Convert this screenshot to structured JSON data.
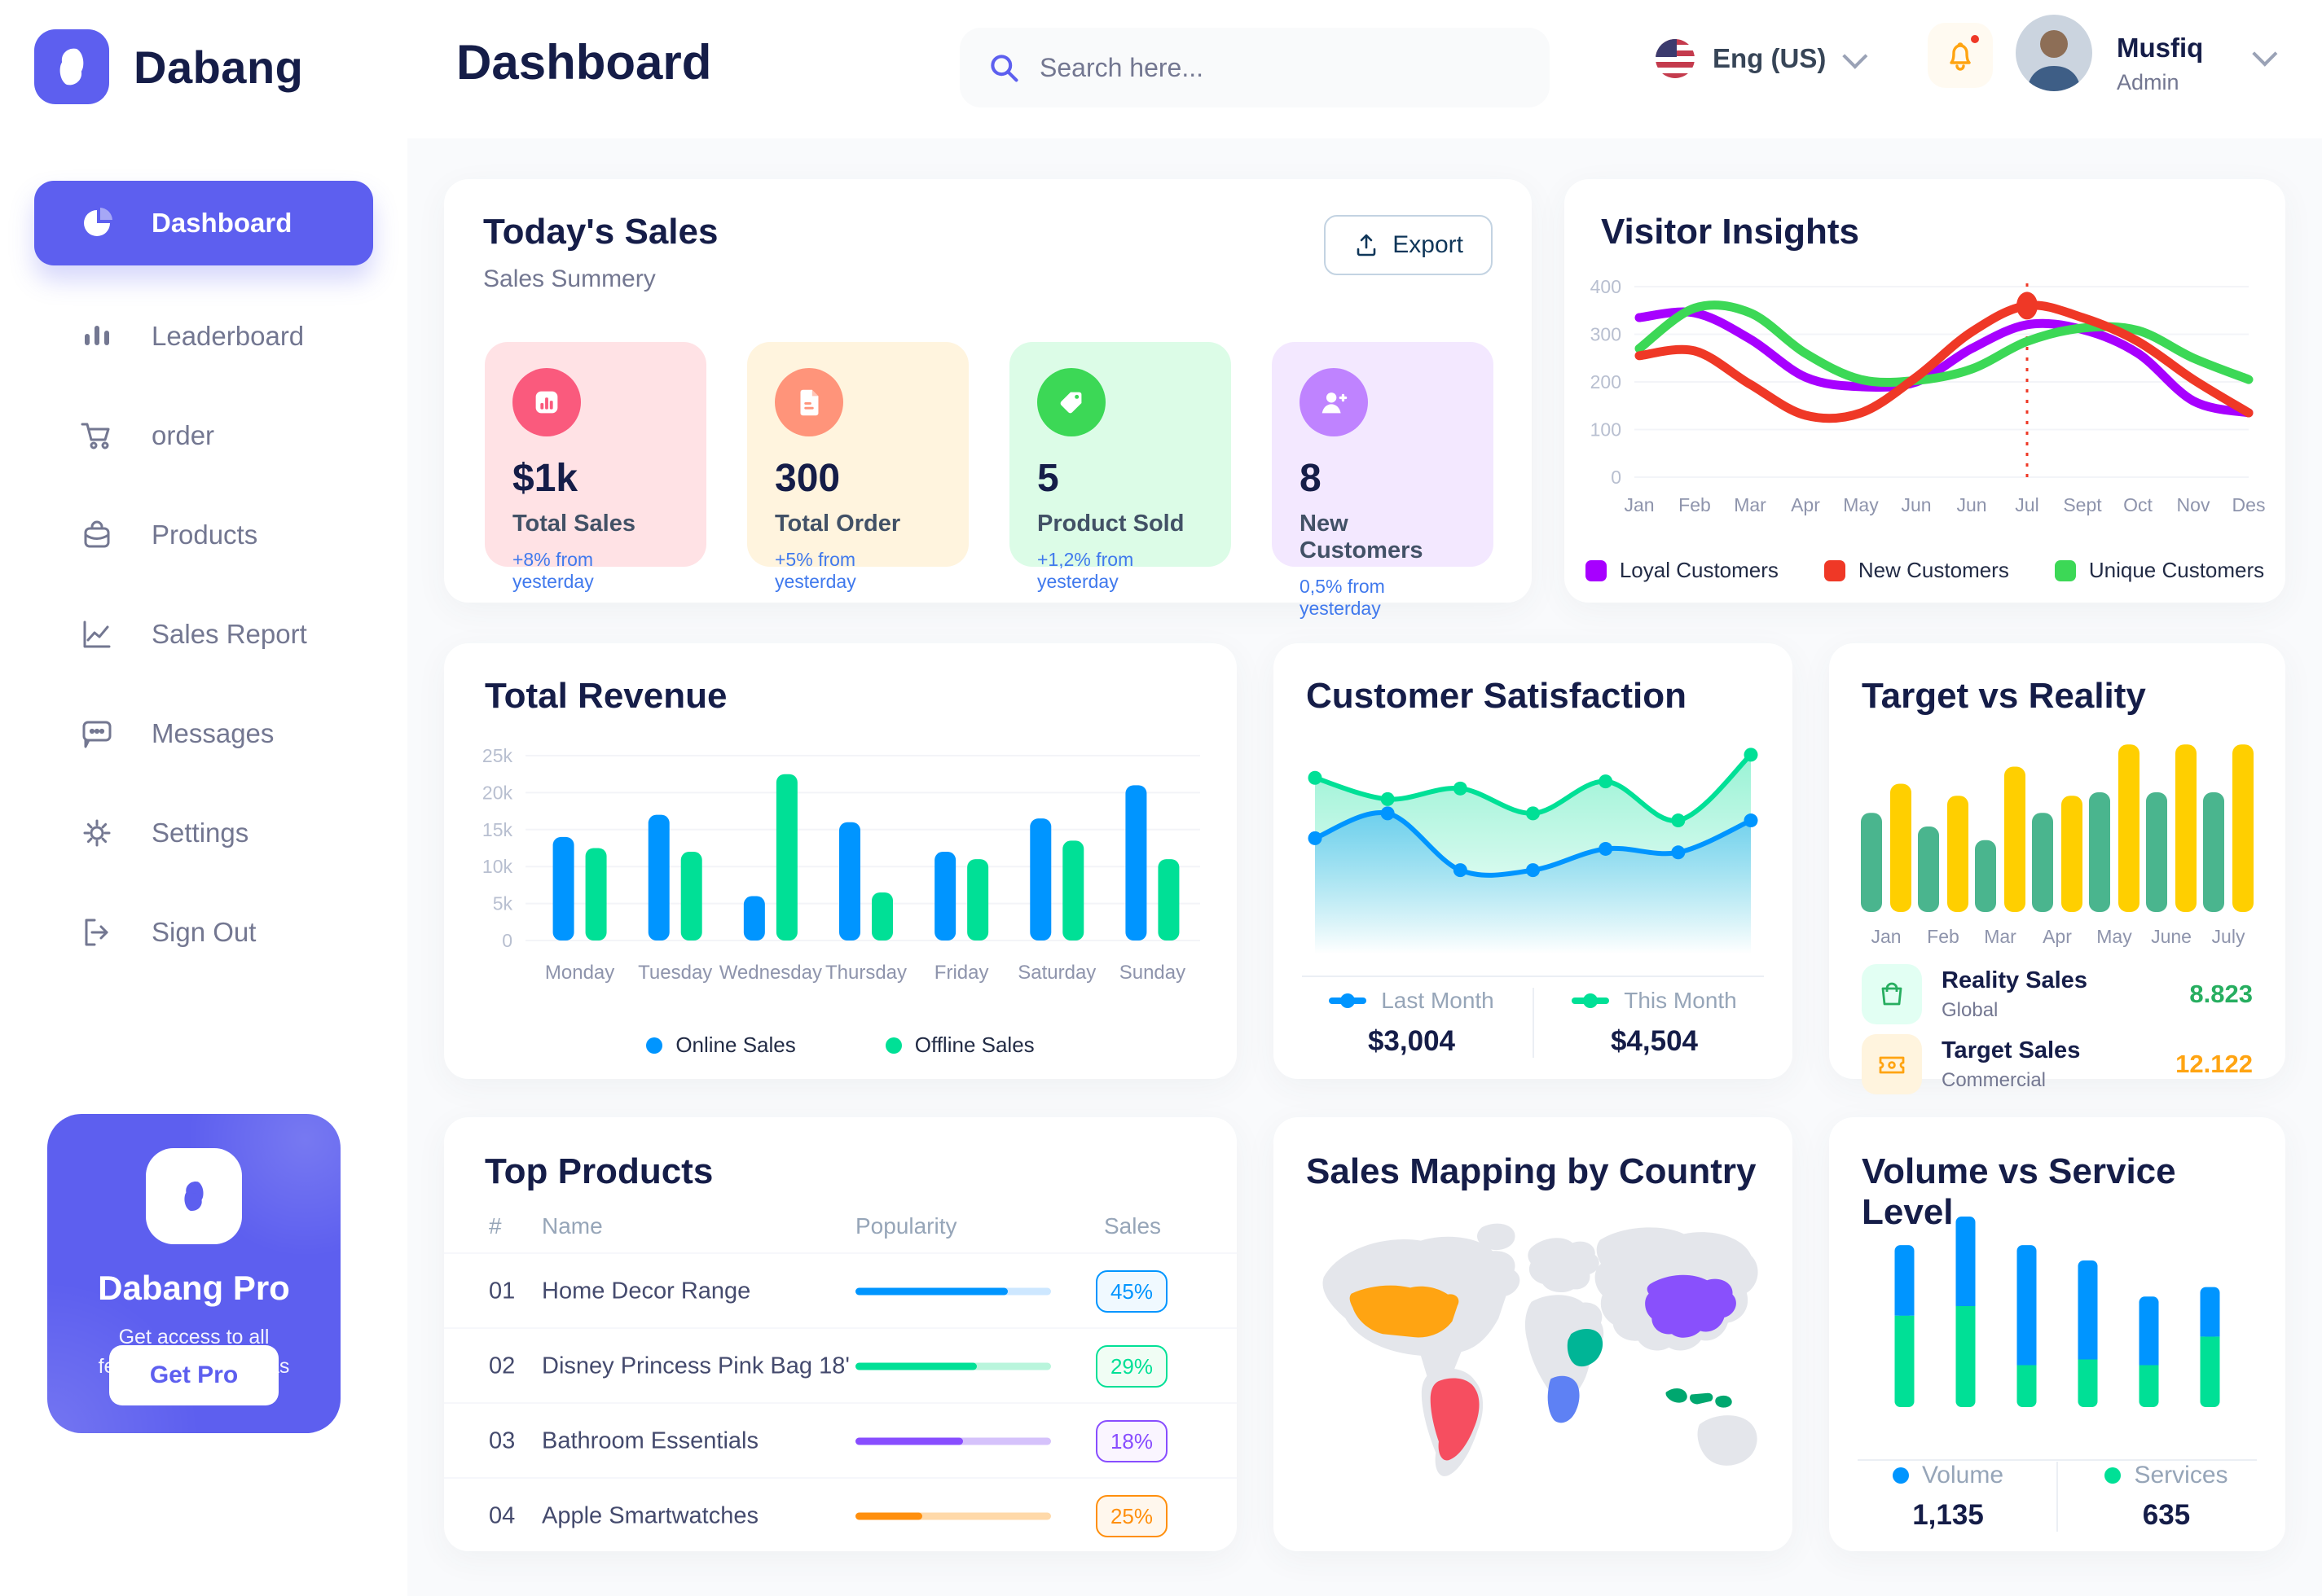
{
  "brand": {
    "name": "Dabang"
  },
  "header": {
    "title": "Dashboard",
    "search_placeholder": "Search here...",
    "language": "Eng (US)",
    "user_name": "Musfiq",
    "user_role": "Admin"
  },
  "sidebar": {
    "items": [
      {
        "label": "Dashboard",
        "icon": "pie-chart-icon",
        "active": true
      },
      {
        "label": "Leaderboard",
        "icon": "bar-chart-icon",
        "active": false
      },
      {
        "label": "order",
        "icon": "cart-icon",
        "active": false
      },
      {
        "label": "Products",
        "icon": "bag-icon",
        "active": false
      },
      {
        "label": "Sales Report",
        "icon": "line-chart-icon",
        "active": false
      },
      {
        "label": "Messages",
        "icon": "message-icon",
        "active": false
      },
      {
        "label": "Settings",
        "icon": "gear-icon",
        "active": false
      },
      {
        "label": "Sign Out",
        "icon": "sign-out-icon",
        "active": false
      }
    ],
    "pro_card": {
      "title": "Dabang Pro",
      "subtitle": "Get access to all features on tetumbas",
      "button": "Get Pro"
    }
  },
  "today_sales": {
    "title": "Today's Sales",
    "subtitle": "Sales Summery",
    "export_label": "Export",
    "cards": [
      {
        "value": "$1k",
        "label": "Total Sales",
        "delta": "+8% from yesterday",
        "bg": "#FFE2E5",
        "icon_bg": "#FA5A7D",
        "icon": "sales-chart-icon"
      },
      {
        "value": "300",
        "label": "Total Order",
        "delta": "+5% from yesterday",
        "bg": "#FFF4DE",
        "icon_bg": "#FF947A",
        "icon": "order-file-icon"
      },
      {
        "value": "5",
        "label": "Product Sold",
        "delta": "+1,2% from yesterday",
        "bg": "#DCFCE7",
        "icon_bg": "#3CD856",
        "icon": "tag-icon"
      },
      {
        "value": "8",
        "label": "New Customers",
        "delta": "0,5% from yesterday",
        "bg": "#F3E8FF",
        "icon_bg": "#BF83FF",
        "icon": "new-customer-icon"
      }
    ]
  },
  "top_products": {
    "title": "Top Products",
    "columns": [
      "#",
      "Name",
      "Popularity",
      "Sales"
    ],
    "rows": [
      {
        "num": "01",
        "name": "Home Decor Range",
        "popularity": 78,
        "sales": "45%",
        "color": "#0095FF",
        "track": "#CDE7FF",
        "badge_bg": "#F0F9FF"
      },
      {
        "num": "02",
        "name": "Disney Princess Pink Bag 18'",
        "popularity": 62,
        "sales": "29%",
        "color": "#00E096",
        "track": "#B9F5DC",
        "badge_bg": "#F0FDF4"
      },
      {
        "num": "03",
        "name": "Bathroom Essentials",
        "popularity": 55,
        "sales": "18%",
        "color": "#884DFF",
        "track": "#D5C2FB",
        "badge_bg": "#FAF5FF"
      },
      {
        "num": "04",
        "name": "Apple Smartwatches",
        "popularity": 34,
        "sales": "25%",
        "color": "#FF8F0D",
        "track": "#FFD9A9",
        "badge_bg": "#FFF7ED"
      }
    ]
  },
  "chart_data": {
    "visitor_insights": {
      "type": "line",
      "title": "Visitor Insights",
      "x": [
        "Jan",
        "Feb",
        "Mar",
        "Apr",
        "May",
        "Jun",
        "Jun",
        "Jul",
        "Sept",
        "Oct",
        "Nov",
        "Des"
      ],
      "ylim": [
        0,
        400
      ],
      "yticks": [
        0,
        100,
        200,
        300,
        400
      ],
      "grid": true,
      "legend_position": "bottom",
      "series": [
        {
          "name": "Loyal Customers",
          "color": "#A700FF",
          "values": [
            335,
            345,
            290,
            210,
            190,
            200,
            270,
            320,
            310,
            260,
            160,
            135
          ]
        },
        {
          "name": "Unique Customers",
          "color": "#3CD856",
          "values": [
            270,
            355,
            345,
            260,
            205,
            203,
            227,
            285,
            313,
            308,
            250,
            205
          ]
        },
        {
          "name": "New Customers",
          "color": "#EF3826",
          "values": [
            255,
            265,
            195,
            130,
            135,
            210,
            305,
            360,
            335,
            285,
            205,
            135
          ],
          "marker_index": 7
        }
      ],
      "legend_order": [
        "Loyal Customers",
        "New Customers",
        "Unique Customers"
      ]
    },
    "total_revenue": {
      "type": "bar",
      "title": "Total Revenue",
      "categories": [
        "Monday",
        "Tuesday",
        "Wednesday",
        "Thursday",
        "Friday",
        "Saturday",
        "Sunday"
      ],
      "ylim": [
        0,
        25
      ],
      "ytick_labels": [
        "0",
        "5k",
        "10k",
        "15k",
        "20k",
        "25k"
      ],
      "grid": true,
      "legend_position": "bottom",
      "series": [
        {
          "name": "Online Sales",
          "color": "#0095FF",
          "values": [
            14,
            17,
            6,
            16,
            12,
            16.5,
            21
          ]
        },
        {
          "name": "Offline Sales",
          "color": "#00E096",
          "values": [
            12.5,
            12,
            22.5,
            6.5,
            11,
            13.5,
            11
          ]
        }
      ]
    },
    "customer_satisfaction": {
      "type": "area",
      "title": "Customer Satisfaction",
      "ylim": [
        0,
        100
      ],
      "legend_position": "bottom",
      "series": [
        {
          "name": "This Month",
          "color": "#00E096",
          "total": "$4,504",
          "values": [
            82,
            70,
            76,
            62,
            80,
            58,
            95
          ]
        },
        {
          "name": "Last Month",
          "color": "#0095FF",
          "total": "$3,004",
          "values": [
            48,
            62,
            30,
            30,
            42,
            40,
            58
          ]
        }
      ],
      "legend_order": [
        "Last Month",
        "This Month"
      ]
    },
    "target_vs_reality": {
      "type": "bar",
      "title": "Target vs Reality",
      "categories": [
        "Jan",
        "Feb",
        "Mar",
        "Apr",
        "May",
        "June",
        "July"
      ],
      "ylim": [
        0,
        100
      ],
      "series": [
        {
          "name": "Reality Sales",
          "subtitle": "Global",
          "color": "#4AB58E",
          "value_label": "8.823",
          "value_color": "#27AE60",
          "icon_bg": "#E2FFF3",
          "icon": "shopping-bag-icon",
          "values": [
            58,
            50,
            42,
            58,
            70,
            70,
            70
          ]
        },
        {
          "name": "Target Sales",
          "subtitle": "Commercial",
          "color": "#FFCF00",
          "value_label": "12.122",
          "value_color": "#FFA412",
          "icon_bg": "#FFF4DE",
          "icon": "ticket-icon",
          "values": [
            75,
            68,
            85,
            68,
            98,
            98,
            98
          ]
        }
      ]
    },
    "sales_mapping": {
      "type": "map",
      "title": "Sales Mapping by Country",
      "countries": [
        {
          "name": "United States",
          "color": "#FFA412"
        },
        {
          "name": "Brazil",
          "color": "#F64E60"
        },
        {
          "name": "Congo",
          "color": "#5E81F4"
        },
        {
          "name": "Saudi Arabia",
          "color": "#00B596"
        },
        {
          "name": "China",
          "color": "#8950FC"
        },
        {
          "name": "Indonesia",
          "color": "#00A76F"
        }
      ]
    },
    "volume_vs_service": {
      "type": "stacked-bar",
      "title": "Volume vs Service Level",
      "ylim": [
        0,
        100
      ],
      "legend_position": "bottom",
      "series": [
        {
          "name": "Volume",
          "color": "#0095FF",
          "total": "1,135",
          "values": [
            37,
            47,
            63,
            52,
            36,
            26
          ]
        },
        {
          "name": "Services",
          "color": "#00E096",
          "total": "635",
          "values": [
            48,
            53,
            22,
            25,
            22,
            37
          ]
        }
      ]
    }
  }
}
